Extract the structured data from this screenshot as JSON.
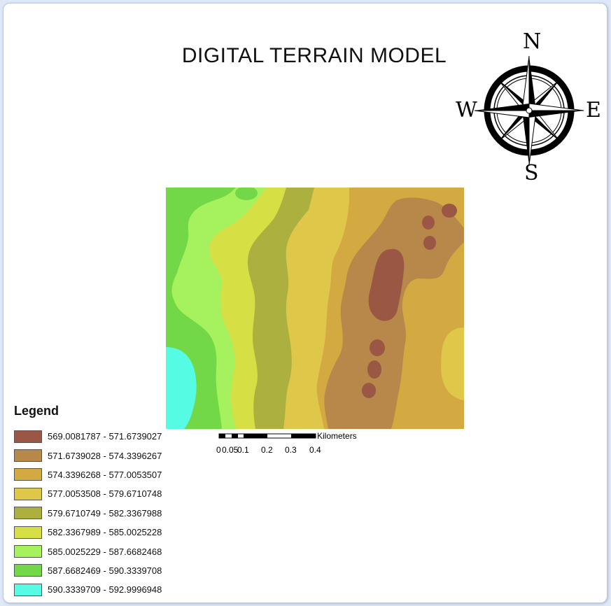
{
  "title": "DIGITAL TERRAIN MODEL",
  "north_arrow": {
    "icon": "compass-rose-icon",
    "n": "N",
    "s": "S",
    "e": "E",
    "w": "W"
  },
  "scale_bar": {
    "unit": "Kilometers",
    "labels": [
      "0",
      "0.05",
      "0.1",
      "0.2",
      "0.3",
      "0.4"
    ]
  },
  "legend": {
    "title": "Legend",
    "classes": [
      {
        "label": "569.0081787 - 571.6739027",
        "color": "#9a5744"
      },
      {
        "label": "571.6739028 - 574.3396267",
        "color": "#b8884a"
      },
      {
        "label": "574.3396268 - 577.0053507",
        "color": "#d3aa42"
      },
      {
        "label": "577.0053508 - 579.6710748",
        "color": "#dfc74a"
      },
      {
        "label": "579.6710749 - 582.3367988",
        "color": "#abb03f"
      },
      {
        "label": "582.3367989 - 585.0025228",
        "color": "#d6df44"
      },
      {
        "label": "585.0025229 - 587.6682468",
        "color": "#a6f25e"
      },
      {
        "label": "587.6682469 - 590.3339708",
        "color": "#73d847"
      },
      {
        "label": "590.3339709 - 592.9996948",
        "color": "#55fbe2"
      }
    ]
  }
}
